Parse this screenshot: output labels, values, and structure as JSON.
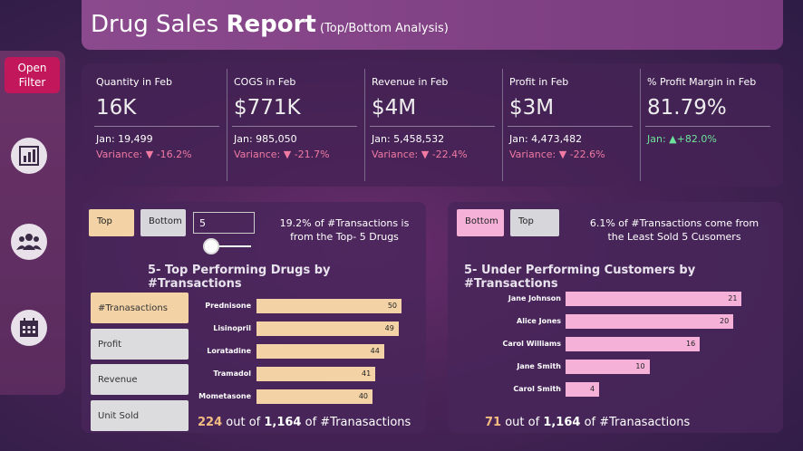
{
  "header": {
    "title_light": "Drug Sales ",
    "title_bold": "Report",
    "subtitle": " (Top/Bottom Analysis)"
  },
  "sidebar": {
    "open_filter_label": "Open Filter",
    "icons": [
      "bar-chart-icon",
      "people-icon",
      "calendar-icon"
    ]
  },
  "kpis": [
    {
      "label": "Quantity in Feb",
      "value": "16K",
      "jan": "Jan: 19,499",
      "variance_prefix": "Variance: ",
      "variance": "-16.2%",
      "direction": "down"
    },
    {
      "label": "COGS in Feb",
      "value": "$771K",
      "jan": "Jan: 985,050",
      "variance_prefix": "Variance: ",
      "variance": "-21.7%",
      "direction": "down"
    },
    {
      "label": "Revenue in Feb",
      "value": "$4M",
      "jan": "Jan: 5,458,532",
      "variance_prefix": "Variance: ",
      "variance": "-22.4%",
      "direction": "down"
    },
    {
      "label": "Profit in Feb",
      "value": "$3M",
      "jan": "Jan: 4,473,482",
      "variance_prefix": "Variance: ",
      "variance": "-22.6%",
      "direction": "down"
    },
    {
      "label": "% Profit Margin in Feb",
      "value": "81.79%",
      "jan": "Jan: ",
      "variance_prefix": "",
      "variance": "+82.0%",
      "direction": "up"
    }
  ],
  "left_panel": {
    "toggle_top": "Top",
    "toggle_bottom": "Bottom",
    "n_value": "5",
    "note": "19.2% of #Transactions is from the Top- 5 Drugs",
    "title": "5- Top Performing Drugs by #Transactions",
    "metrics": [
      "#Tranasactions",
      "Profit",
      "Revenue",
      "Unit Sold"
    ],
    "footer_value": "224",
    "footer_mid": " out of ",
    "footer_total": "1,164",
    "footer_end": " of #Tranasactions"
  },
  "right_panel": {
    "toggle_bottom": "Bottom",
    "toggle_top": "Top",
    "note": "6.1% of #Transactions come from the Least Sold 5 Cusomers",
    "title": "5- Under Performing Customers by #Transactions",
    "footer_value": "71",
    "footer_mid": " out of ",
    "footer_total": "1,164",
    "footer_end": " of #Tranasactions"
  },
  "chart_data": [
    {
      "type": "bar",
      "orientation": "horizontal",
      "title": "5- Top Performing Drugs by #Transactions",
      "categories": [
        "Prednisone",
        "Lisinopril",
        "Loratadine",
        "Tramadol",
        "Mometasone"
      ],
      "values": [
        50,
        49,
        44,
        41,
        40
      ],
      "color": "#f3d3a6",
      "xlim": [
        0,
        55
      ]
    },
    {
      "type": "bar",
      "orientation": "horizontal",
      "title": "5- Under Performing Customers by #Transactions",
      "categories": [
        "Jane Johnson",
        "Alice Jones",
        "Carol Williams",
        "Jane Smith",
        "Carol Smith"
      ],
      "values": [
        21,
        20,
        16,
        10,
        4
      ],
      "color": "#f5b1d8",
      "xlim": [
        0,
        23
      ]
    }
  ],
  "colors": {
    "accent_pink": "#c2185b",
    "negative": "#f07aa2",
    "positive": "#6ee39a"
  }
}
